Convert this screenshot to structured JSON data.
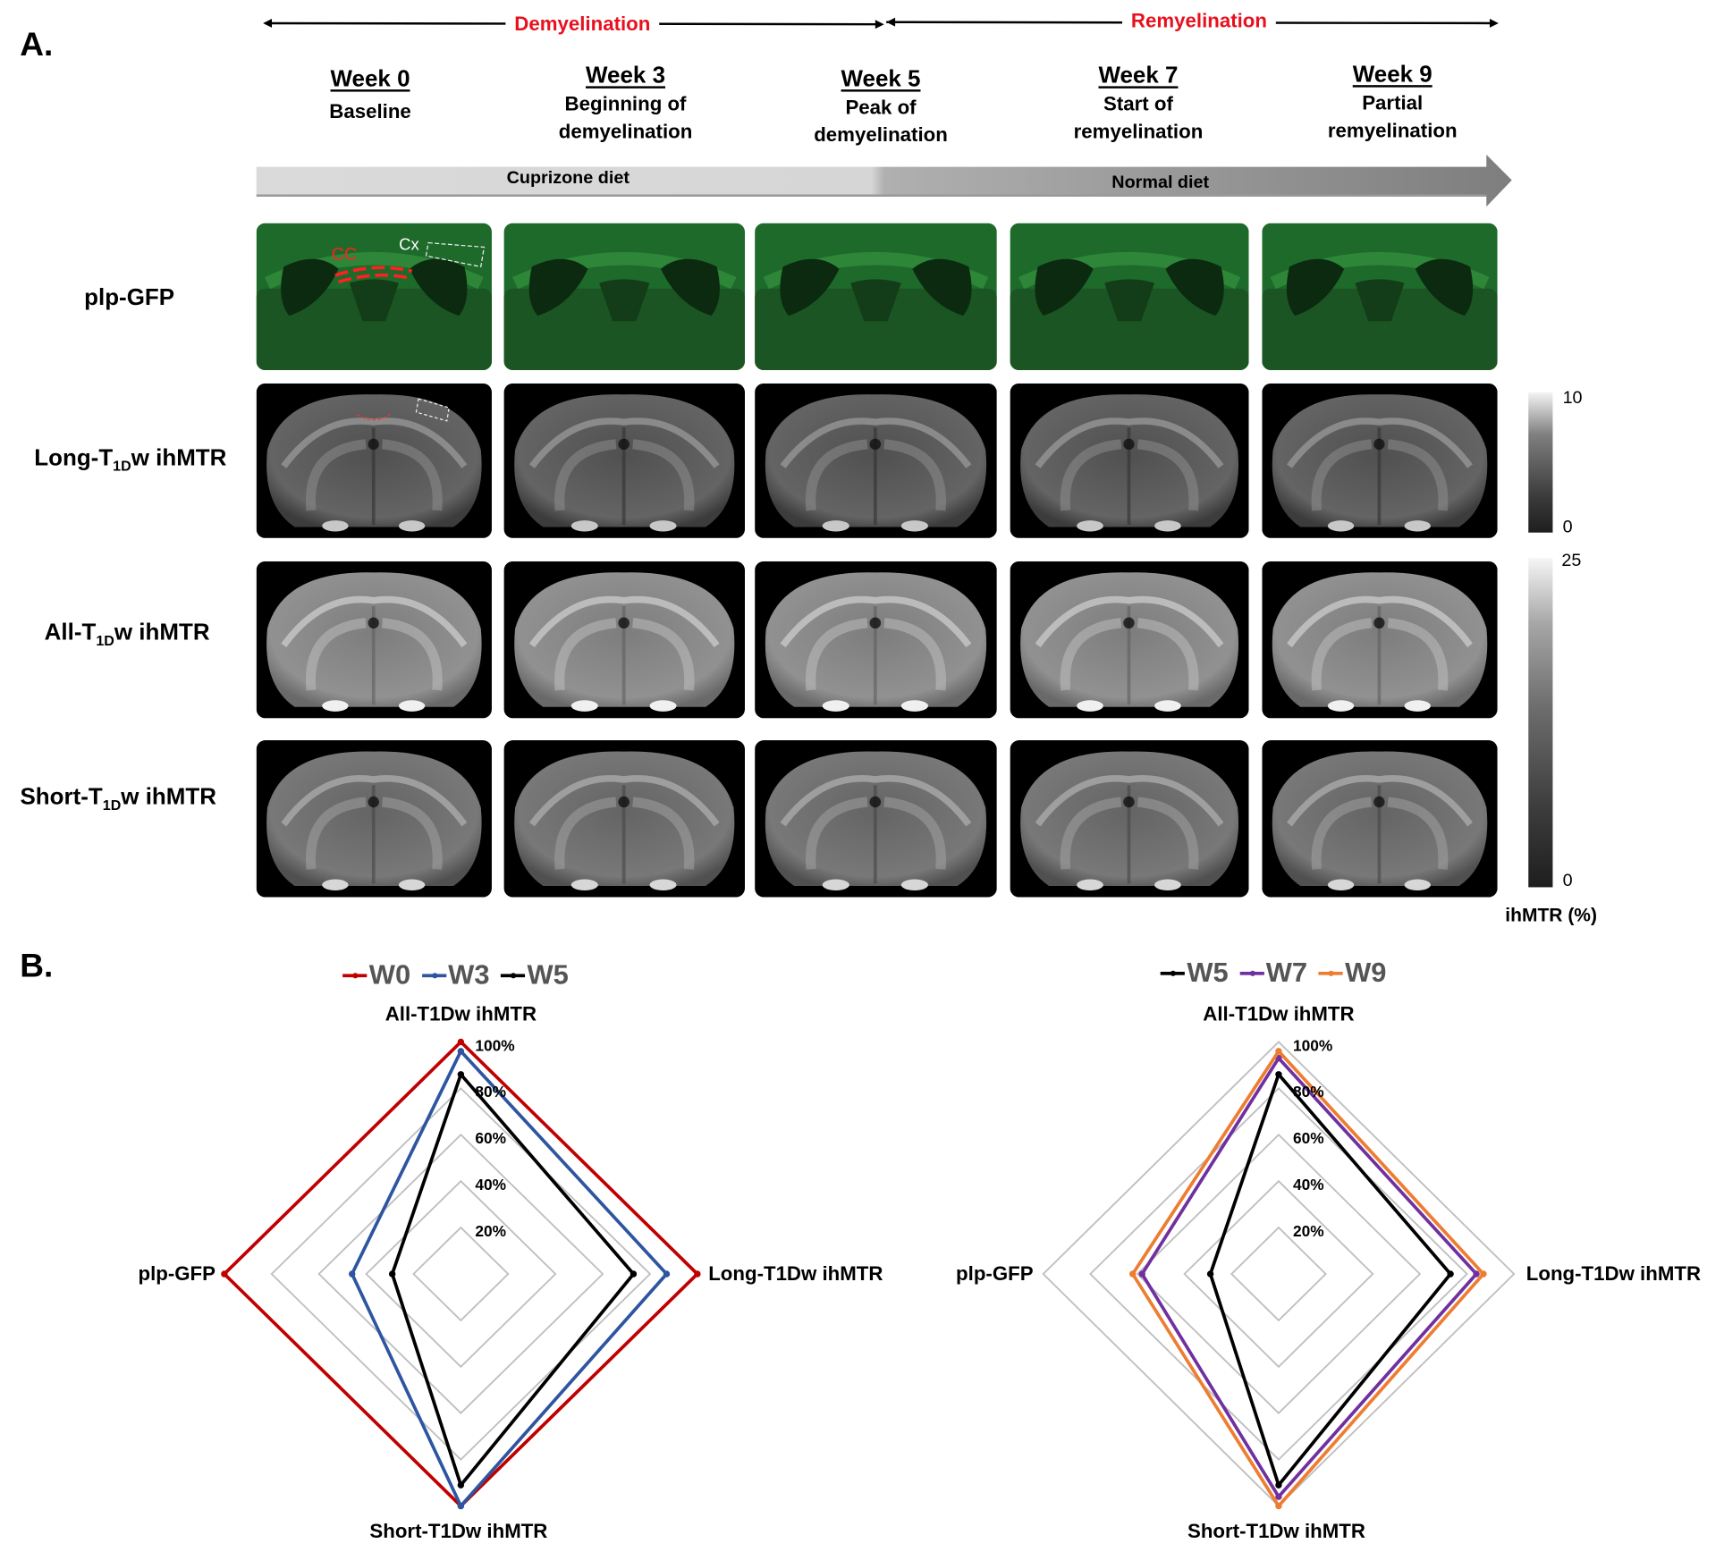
{
  "panel_a": {
    "letter": "A.",
    "phases": [
      {
        "label": "Demyelination",
        "color": "#e8101e"
      },
      {
        "label": "Remyelination",
        "color": "#e8101e"
      }
    ],
    "weeks": [
      {
        "title": "Week 0",
        "line1": "Baseline",
        "line2": ""
      },
      {
        "title": "Week 3",
        "line1": "Beginning of",
        "line2": "demyelination"
      },
      {
        "title": "Week 5",
        "line1": "Peak of",
        "line2": "demyelination"
      },
      {
        "title": "Week 7",
        "line1": "Start of",
        "line2": "remyelination"
      },
      {
        "title": "Week 9",
        "line1": "Partial",
        "line2": "remyelination"
      }
    ],
    "diets": [
      "Cuprizone diet",
      "Normal diet"
    ],
    "rows": [
      {
        "pre": "plp-GFP",
        "sub": "",
        "post": ""
      },
      {
        "pre": "Long-T",
        "sub": "1D",
        "post": "w ihMTR"
      },
      {
        "pre": "All-T",
        "sub": "1D",
        "post": "w ihMTR"
      },
      {
        "pre": "Short-T",
        "sub": "1D",
        "post": "w ihMTR"
      }
    ],
    "annotations": {
      "cc": "CC",
      "cx": "Cx"
    },
    "colorbars": [
      {
        "max": "10",
        "min": "0"
      },
      {
        "max": "25",
        "min": "0"
      }
    ],
    "colorbar_unit": "ihMTR (%)"
  },
  "panel_b": {
    "letter": "B."
  },
  "chart_data": [
    {
      "type": "radar",
      "axes": [
        "All-T1Dw ihMTR",
        "Long-T1Dw ihMTR",
        "Short-T1Dw ihMTR",
        "plp-GFP"
      ],
      "ticks": [
        "20%",
        "40%",
        "60%",
        "80%",
        "100%"
      ],
      "range": [
        0,
        100
      ],
      "legend": "top",
      "series": [
        {
          "name": "W0",
          "color": "#c00000",
          "values": [
            100,
            100,
            100,
            100
          ]
        },
        {
          "name": "W3",
          "color": "#2e55a0",
          "values": [
            96,
            87,
            100,
            46
          ]
        },
        {
          "name": "W5",
          "color": "#000000",
          "values": [
            86,
            73,
            91,
            29
          ]
        }
      ]
    },
    {
      "type": "radar",
      "axes": [
        "All-T1Dw ihMTR",
        "Long-T1Dw ihMTR",
        "Short-T1Dw ihMTR",
        "plp-GFP"
      ],
      "ticks": [
        "20%",
        "40%",
        "60%",
        "80%",
        "100%"
      ],
      "range": [
        0,
        100
      ],
      "legend": "top",
      "series": [
        {
          "name": "W5",
          "color": "#000000",
          "values": [
            86,
            73,
            91,
            29
          ]
        },
        {
          "name": "W7",
          "color": "#7030a0",
          "values": [
            93,
            84,
            96,
            58
          ]
        },
        {
          "name": "W9",
          "color": "#ed7d31",
          "values": [
            96,
            87,
            100,
            62
          ]
        }
      ]
    }
  ]
}
